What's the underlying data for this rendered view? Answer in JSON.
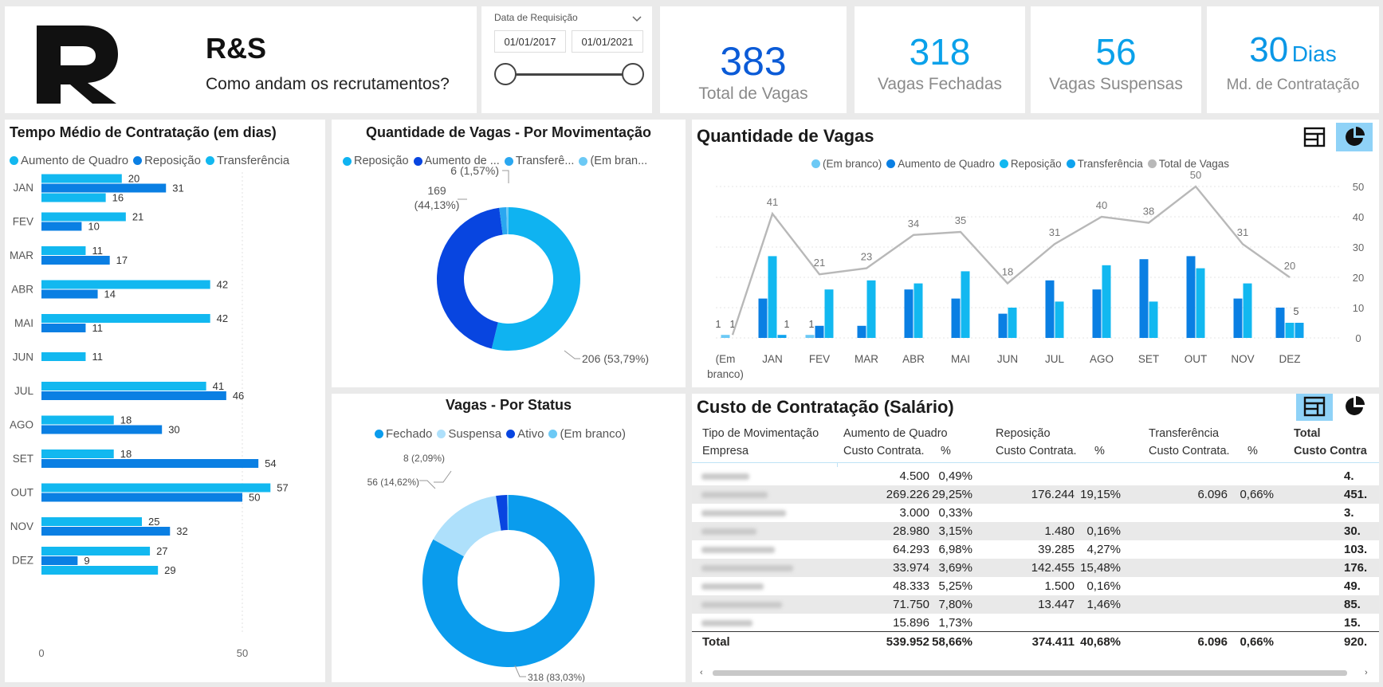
{
  "header": {
    "brand": "R&S",
    "subtitle": "Como andam os recrutamentos?"
  },
  "slicer": {
    "label": "Data de Requisição",
    "date_from": "01/01/2017",
    "date_to": "01/01/2021"
  },
  "kpis": [
    {
      "value": "383",
      "unit": "",
      "label": "Total de Vagas",
      "color": "#0b5bd7"
    },
    {
      "value": "318",
      "unit": "",
      "label": "Vagas Fechadas",
      "color": "#0aa1ea"
    },
    {
      "value": "56",
      "unit": "",
      "label": "Vagas Suspensas",
      "color": "#0aa1ea"
    },
    {
      "value": "30",
      "unit": "Dias",
      "label": "Md. de Contratação",
      "color": "#0a97e6"
    }
  ],
  "chart_data": [
    {
      "type": "bar",
      "orientation": "horizontal",
      "title": "Tempo Médio de Contratação (em dias)",
      "legend": [
        "Aumento de Quadro",
        "Reposição",
        "Transferência"
      ],
      "categories": [
        "JAN",
        "FEV",
        "MAR",
        "ABR",
        "MAI",
        "JUN",
        "JUL",
        "AGO",
        "SET",
        "OUT",
        "NOV",
        "DEZ"
      ],
      "series": [
        {
          "name": "Aumento de Quadro",
          "color": "#12b8f0",
          "values": [
            20,
            21,
            11,
            42,
            42,
            11,
            41,
            18,
            18,
            57,
            25,
            27
          ]
        },
        {
          "name": "Reposição",
          "color": "#0a7fe3",
          "values": [
            31,
            10,
            17,
            14,
            11,
            null,
            46,
            30,
            54,
            50,
            32,
            9
          ]
        },
        {
          "name": "Transferência",
          "color": "#12b8f0",
          "values": [
            16,
            null,
            null,
            null,
            null,
            null,
            null,
            null,
            null,
            null,
            null,
            29
          ]
        }
      ],
      "xlim": [
        0,
        60
      ],
      "xticks": [
        "0",
        "50"
      ]
    },
    {
      "type": "pie",
      "title": "Quantidade de Vagas - Por Movimentação",
      "legend": [
        "Reposição",
        "Aumento de ...",
        "Transferê...",
        "(Em bran..."
      ],
      "slices": [
        {
          "name": "Reposição",
          "value": 206,
          "label": "206 (53,79%)",
          "color": "#0fb3f1"
        },
        {
          "name": "Aumento de Quadro",
          "value": 169,
          "label_a": "169",
          "label_b": "(44,13%)",
          "color": "#0845e0"
        },
        {
          "name": "Transferência",
          "value": 6,
          "label": "6 (1,57%)",
          "color": "#2aa7f0"
        },
        {
          "name": "(Em branco)",
          "value": 2,
          "color": "#6cc9f5"
        }
      ]
    },
    {
      "type": "pie",
      "title": "Vagas - Por Status",
      "legend": [
        "Fechado",
        "Suspensa",
        "Ativo",
        "(Em branco)"
      ],
      "slices": [
        {
          "name": "Fechado",
          "value": 318,
          "label": "318 (83,03%)",
          "color": "#0a9ced"
        },
        {
          "name": "Suspensa",
          "value": 56,
          "label": "56 (14,62%)",
          "color": "#aee0fb"
        },
        {
          "name": "Ativo",
          "value": 8,
          "label": "8 (2,09%)",
          "color": "#0845e0"
        },
        {
          "name": "(Em branco)",
          "value": 1,
          "color": "#6cc9f5"
        }
      ]
    },
    {
      "type": "bar",
      "title": "Quantidade de Vagas",
      "legend": [
        "(Em branco)",
        "Aumento de Quadro",
        "Reposição",
        "Transferência",
        "Total de Vagas"
      ],
      "categories": [
        "(Em branco)",
        "JAN",
        "FEV",
        "MAR",
        "ABR",
        "MAI",
        "JUN",
        "JUL",
        "AGO",
        "SET",
        "OUT",
        "NOV",
        "DEZ"
      ],
      "series": [
        {
          "name": "(Em branco)",
          "color": "#6cc9f5",
          "values": [
            1,
            null,
            1,
            null,
            null,
            null,
            null,
            null,
            null,
            null,
            null,
            null,
            null
          ]
        },
        {
          "name": "Aumento de Quadro",
          "color": "#0a7fe3",
          "values": [
            null,
            13,
            4,
            4,
            16,
            13,
            8,
            19,
            16,
            26,
            27,
            13,
            10
          ]
        },
        {
          "name": "Reposição",
          "color": "#12b8f0",
          "values": [
            null,
            27,
            16,
            19,
            18,
            22,
            10,
            12,
            24,
            12,
            23,
            18,
            5
          ]
        },
        {
          "name": "Transferência",
          "color": "#0fa3ee",
          "values": [
            null,
            1,
            null,
            null,
            null,
            null,
            null,
            null,
            null,
            null,
            null,
            null,
            5
          ]
        },
        {
          "name": "Total de Vagas",
          "type": "line",
          "color": "#b8b8b8",
          "values": [
            1,
            41,
            21,
            23,
            34,
            35,
            18,
            31,
            40,
            38,
            50,
            31,
            20
          ]
        }
      ],
      "ylim": [
        0,
        50
      ],
      "yticks": [
        "0",
        "10",
        "20",
        "30",
        "40",
        "50"
      ]
    }
  ],
  "matrix": {
    "title": "Custo de Contratação (Salário)",
    "header1": [
      "Tipo de Movimentação",
      "Aumento de Quadro",
      "Reposição",
      "Transferência",
      "Total"
    ],
    "header2": [
      "Empresa",
      "Custo Contrata.",
      "%",
      "Custo Contrata.",
      "%",
      "Custo Contrata.",
      "%",
      "Custo Contra"
    ],
    "rows": [
      [
        "4.500",
        "0,49%",
        "",
        "",
        "",
        "",
        "4."
      ],
      [
        "269.226",
        "29,25%",
        "176.244",
        "19,15%",
        "6.096",
        "0,66%",
        "451."
      ],
      [
        "3.000",
        "0,33%",
        "",
        "",
        "",
        "",
        "3."
      ],
      [
        "28.980",
        "3,15%",
        "1.480",
        "0,16%",
        "",
        "",
        "30."
      ],
      [
        "64.293",
        "6,98%",
        "39.285",
        "4,27%",
        "",
        "",
        "103."
      ],
      [
        "33.974",
        "3,69%",
        "142.455",
        "15,48%",
        "",
        "",
        "176."
      ],
      [
        "48.333",
        "5,25%",
        "1.500",
        "0,16%",
        "",
        "",
        "49."
      ],
      [
        "71.750",
        "7,80%",
        "13.447",
        "1,46%",
        "",
        "",
        "85."
      ],
      [
        "15.896",
        "1,73%",
        "",
        "",
        "",
        "",
        "15."
      ]
    ],
    "total": [
      "Total",
      "539.952",
      "58,66%",
      "374.411",
      "40,68%",
      "6.096",
      "0,66%",
      "920."
    ]
  }
}
